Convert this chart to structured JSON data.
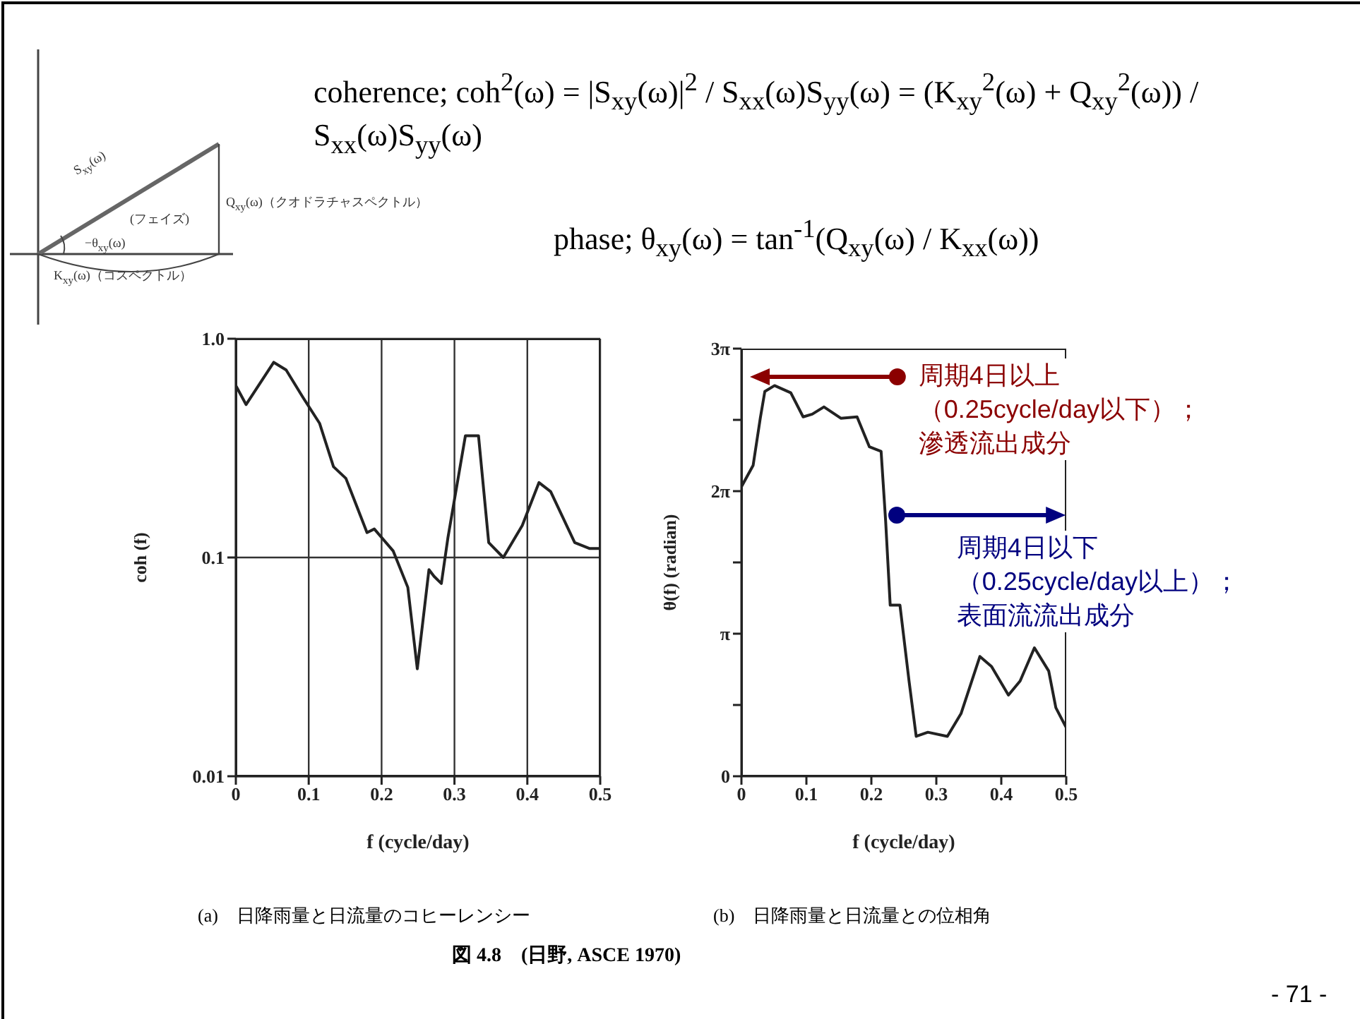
{
  "chart_data": [
    {
      "type": "line",
      "xlabel": "f (cycle/day)",
      "ylabel": "coh (f)",
      "log": "y",
      "grid": true,
      "xlim": [
        0,
        0.5
      ],
      "xticks": [
        0,
        0.1,
        0.2,
        0.3,
        0.4,
        0.5
      ],
      "ylim": [
        0.01,
        1
      ],
      "yticks": [
        0.01,
        0.1,
        {
          "value": 1,
          "label": "1.0"
        }
      ],
      "x": [
        0,
        0.014,
        0.052,
        0.069,
        0.092,
        0.115,
        0.134,
        0.151,
        0.18,
        0.19,
        0.216,
        0.236,
        0.249,
        0.265,
        0.272,
        0.282,
        0.291,
        0.315,
        0.333,
        0.347,
        0.367,
        0.393,
        0.416,
        0.432,
        0.465,
        0.485,
        0.5
      ],
      "series": [
        {
          "color": "#222222",
          "values": [
            0.61,
            0.5,
            0.78,
            0.72,
            0.54,
            0.41,
            0.26,
            0.23,
            0.13,
            0.135,
            0.107,
            0.073,
            0.031,
            0.088,
            0.082,
            0.076,
            0.123,
            0.36,
            0.36,
            0.117,
            0.1,
            0.14,
            0.22,
            0.2,
            0.117,
            0.11,
            0.11
          ]
        }
      ],
      "annotations": [
        "coherence;  coh$^{2}$(ω) = |S$_{xy}$(ω)|$^{2}$ / S$_{xx}$(ω)S$_{yy}$(ω) = (K$_{xy}$$^{2}$(ω) + Q$_{xy}$$^{2}$(ω)) / S$_{xx}$(ω)S$_{yy}$(ω)",
        "phase;  θ$_{xy}$(ω) = tan$^{-1}$(Q$_{xy}$(ω) / K$_{xx}$(ω))",
        "S$_{xy}$(ω)",
        "(フェイズ)",
        "−θ$_{xy}$(ω)",
        "Q$_{xy}$(ω)（クオドラチャスペクトル）",
        "K$_{xy}$(ω)（コスペクトル）",
        "(a)　日降雨量と日流量のコヒーレンシー",
        "図 4.8　(日野, ASCE 1970)",
        "- 71 -"
      ]
    },
    {
      "type": "line",
      "xlabel": "f (cycle/day)",
      "ylabel": "θ(f) (radian)",
      "xlim": [
        0,
        0.5
      ],
      "xticks": [
        0,
        0.1,
        0.2,
        0.3,
        0.4,
        0.5
      ],
      "ylim": [
        0,
        9.42478
      ],
      "yticks": [
        0,
        {
          "value": 1.5708,
          "label": null
        },
        {
          "value": 3.14159,
          "label": "π"
        },
        {
          "value": 4.71239,
          "label": null
        },
        {
          "value": 6.28319,
          "label": "2π"
        },
        {
          "value": 7.85398,
          "label": null
        },
        {
          "value": 9.42478,
          "label": "3π"
        }
      ],
      "x": [
        0,
        0.018,
        0.029,
        0.036,
        0.051,
        0.076,
        0.095,
        0.109,
        0.127,
        0.153,
        0.178,
        0.197,
        0.215,
        0.222,
        0.229,
        0.244,
        0.258,
        0.269,
        0.287,
        0.317,
        0.338,
        0.367,
        0.385,
        0.411,
        0.429,
        0.451,
        0.473,
        0.484,
        0.5
      ],
      "series": [
        {
          "color": "#222222",
          "values": [
            6.38,
            6.85,
            7.89,
            8.48,
            8.61,
            8.45,
            7.92,
            7.98,
            8.14,
            7.89,
            7.92,
            7.26,
            7.16,
            5.62,
            3.77,
            3.77,
            2.1,
            0.88,
            0.97,
            0.88,
            1.38,
            2.64,
            2.42,
            1.79,
            2.1,
            2.83,
            2.32,
            1.51,
            1.07
          ]
        }
      ],
      "annotations": [
        {
          "text": "周期4日以上（0.25cycle/day以下）；滲透流出成分",
          "x": 0.24,
          "y": 8.8
        },
        {
          "text": "周期4日以下（0.25cycle/day以上）；表面流流出成分",
          "x": 0.24,
          "y": 5.74
        },
        "(b)　日降雨量と日流量との位相角"
      ]
    }
  ]
}
